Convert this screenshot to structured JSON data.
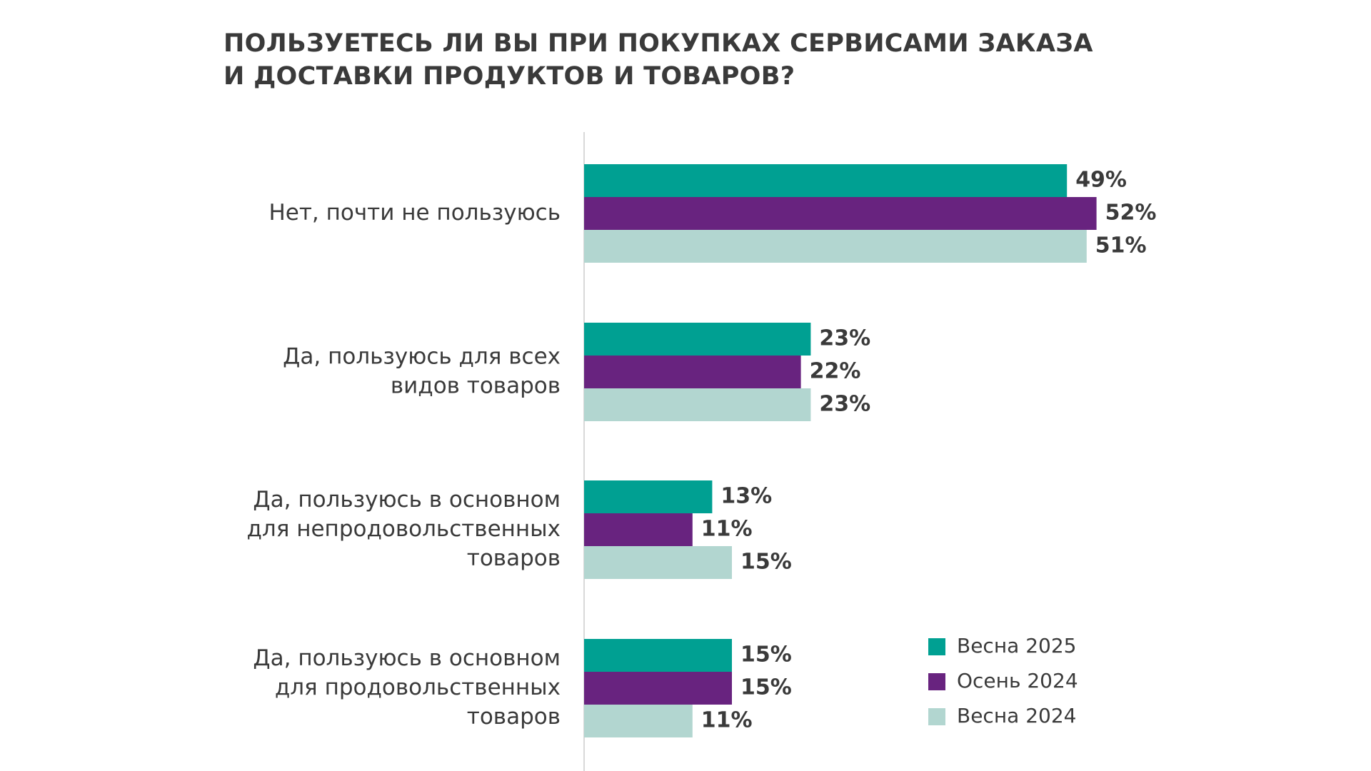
{
  "chart_data": {
    "type": "bar",
    "orientation": "horizontal",
    "title": "ПОЛЬЗУЕТЕСЬ ЛИ ВЫ ПРИ ПОКУПКАХ СЕРВИСАМИ ЗАКАЗА И ДОСТАВКИ ПРОДУКТОВ И ТОВАРОВ?",
    "title_lines": [
      "ПОЛЬЗУЕТЕСЬ ЛИ ВЫ ПРИ ПОКУПКАХ СЕРВИСАМИ ЗАКАЗА",
      "И ДОСТАВКИ ПРОДУКТОВ И ТОВАРОВ?"
    ],
    "categories": [
      [
        "Нет, почти не пользуюсь"
      ],
      [
        "Да, пользуюсь для всех",
        "видов товаров"
      ],
      [
        "Да, пользуюсь в основном",
        "для непродовольственных",
        "товаров"
      ],
      [
        "Да, пользуюсь в основном",
        "для продовольственных",
        "товаров"
      ]
    ],
    "series": [
      {
        "name": "Весна 2025",
        "color": "#00a092",
        "values": [
          49,
          23,
          13,
          15
        ],
        "labels": [
          "49%",
          "23%",
          "13%",
          "15%"
        ]
      },
      {
        "name": "Осень 2024",
        "color": "#68237f",
        "values": [
          52,
          22,
          11,
          15
        ],
        "labels": [
          "52%",
          "22%",
          "11%",
          "15%"
        ]
      },
      {
        "name": "Весна 2024",
        "color": "#b2d6d0",
        "values": [
          51,
          23,
          15,
          11
        ],
        "labels": [
          "51%",
          "23%",
          "15%",
          "11%"
        ]
      }
    ],
    "unit": "%",
    "xlim": [
      0,
      52
    ],
    "xlabel": "",
    "ylabel": "",
    "grid": false,
    "legend_position": "bottom-right",
    "axis_color": "#d9d9d9",
    "text_color": "#3a3a3a"
  }
}
